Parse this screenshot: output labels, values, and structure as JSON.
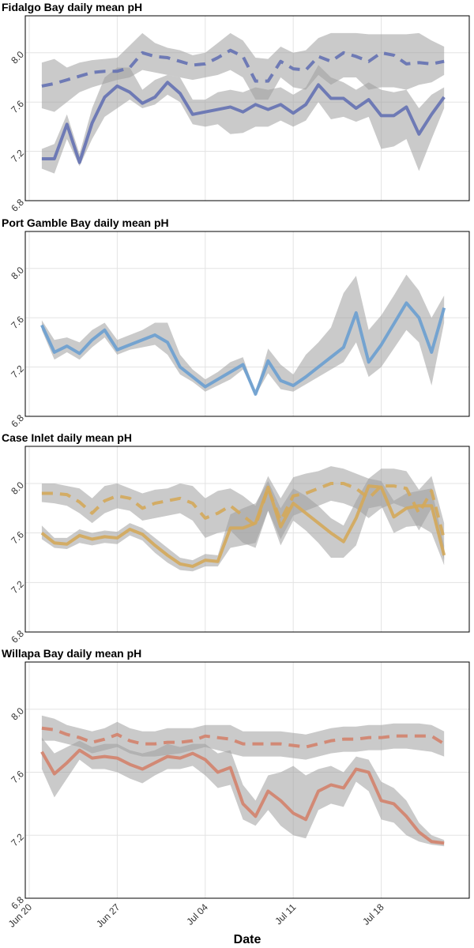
{
  "chart_data": [
    {
      "type": "line",
      "title": "Fidalgo Bay daily mean pH",
      "x": [
        "Jun 21",
        "Jun 22",
        "Jun 23",
        "Jun 24",
        "Jun 25",
        "Jun 26",
        "Jun 27",
        "Jun 28",
        "Jun 29",
        "Jun 30",
        "Jul 01",
        "Jul 02",
        "Jul 03",
        "Jul 04",
        "Jul 05",
        "Jul 06",
        "Jul 07",
        "Jul 08",
        "Jul 09",
        "Jul 10",
        "Jul 11",
        "Jul 12",
        "Jul 13",
        "Jul 14",
        "Jul 15",
        "Jul 16",
        "Jul 17",
        "Jul 18",
        "Jul 19",
        "Jul 20",
        "Jul 21",
        "Jul 22",
        "Jul 23"
      ],
      "xlim": [
        "Jun 20",
        "Jul 25"
      ],
      "xticks": [
        "Jun 20",
        "Jun 27",
        "Jul 04",
        "Jul 11",
        "Jul 18"
      ],
      "ylim": [
        6.8,
        8.3
      ],
      "yticks": [
        6.8,
        7.2,
        7.6,
        {
          "value": 8,
          "label": "8.0"
        }
      ],
      "grid": true,
      "series": [
        {
          "color": "#6471b3",
          "dashed": false,
          "values": [
            7.14,
            7.14,
            7.42,
            7.11,
            7.43,
            7.64,
            7.73,
            7.68,
            7.59,
            7.64,
            7.76,
            7.67,
            7.5,
            7.52,
            7.54,
            7.56,
            7.52,
            7.58,
            7.54,
            7.58,
            7.51,
            7.58,
            7.74,
            7.63,
            7.63,
            7.55,
            7.62,
            7.49,
            7.49,
            7.56,
            7.34,
            7.5,
            7.64
          ],
          "lower": [
            7.06,
            7.02,
            7.3,
            7.08,
            7.3,
            7.48,
            7.55,
            7.62,
            7.55,
            7.58,
            7.66,
            7.6,
            7.42,
            7.4,
            7.42,
            7.34,
            7.35,
            7.4,
            7.4,
            7.45,
            7.4,
            7.45,
            7.6,
            7.46,
            7.48,
            7.44,
            7.48,
            7.22,
            7.24,
            7.3,
            7.04,
            7.3,
            7.55
          ],
          "upper": [
            7.22,
            7.26,
            7.5,
            7.18,
            7.55,
            7.8,
            7.88,
            7.88,
            7.7,
            7.78,
            7.82,
            7.8,
            7.62,
            7.62,
            7.68,
            7.7,
            7.68,
            7.72,
            7.7,
            7.72,
            7.66,
            7.72,
            7.9,
            7.8,
            7.76,
            7.7,
            7.76,
            7.7,
            7.68,
            7.7,
            7.55,
            7.66,
            7.72
          ]
        },
        {
          "color": "#6471b3",
          "dashed": true,
          "values": [
            7.73,
            7.75,
            7.78,
            7.81,
            7.84,
            7.85,
            7.85,
            7.88,
            8.0,
            7.97,
            7.96,
            7.93,
            7.9,
            7.91,
            7.96,
            8.02,
            7.97,
            7.77,
            7.77,
            7.93,
            7.87,
            7.86,
            7.97,
            7.93,
            8.0,
            7.97,
            7.93,
            8.0,
            7.98,
            7.91,
            7.92,
            7.91,
            7.93
          ],
          "lower": [
            7.55,
            7.52,
            7.6,
            7.68,
            7.72,
            7.75,
            7.78,
            7.8,
            7.86,
            7.84,
            7.82,
            7.8,
            7.78,
            7.8,
            7.82,
            7.86,
            7.8,
            7.62,
            7.62,
            7.8,
            7.72,
            7.7,
            7.82,
            7.74,
            7.8,
            7.8,
            7.7,
            7.72,
            7.72,
            7.7,
            7.74,
            7.76,
            7.82
          ],
          "upper": [
            7.92,
            7.95,
            7.88,
            7.92,
            7.94,
            7.95,
            7.96,
            8.06,
            8.16,
            8.08,
            8.04,
            8.02,
            7.98,
            8.0,
            8.08,
            8.16,
            8.1,
            7.96,
            7.95,
            8.05,
            8.0,
            8.02,
            8.12,
            8.16,
            8.16,
            8.16,
            8.15,
            8.15,
            8.15,
            8.15,
            8.16,
            8.1,
            8.05
          ]
        }
      ]
    },
    {
      "type": "line",
      "title": "Port Gamble Bay daily mean pH",
      "x": [
        "Jun 21",
        "Jun 22",
        "Jun 23",
        "Jun 24",
        "Jun 25",
        "Jun 26",
        "Jun 27",
        "Jun 28",
        "Jun 29",
        "Jun 30",
        "Jul 01",
        "Jul 02",
        "Jul 03",
        "Jul 04",
        "Jul 05",
        "Jul 06",
        "Jul 07",
        "Jul 08",
        "Jul 09",
        "Jul 10",
        "Jul 11",
        "Jul 12",
        "Jul 13",
        "Jul 14",
        "Jul 15",
        "Jul 16",
        "Jul 17",
        "Jul 18",
        "Jul 19",
        "Jul 20",
        "Jul 21",
        "Jul 22",
        "Jul 23"
      ],
      "xlim": [
        "Jun 20",
        "Jul 25"
      ],
      "xticks": [
        "Jun 20",
        "Jun 27",
        "Jul 04",
        "Jul 11",
        "Jul 18"
      ],
      "ylim": [
        6.8,
        8.3
      ],
      "yticks": [
        6.8,
        7.2,
        7.6,
        {
          "value": 8,
          "label": "8.0"
        }
      ],
      "grid": true,
      "series": [
        {
          "color": "#6a9fd0",
          "dashed": false,
          "values": [
            7.54,
            7.32,
            7.37,
            7.31,
            7.42,
            7.5,
            7.34,
            7.38,
            7.42,
            7.46,
            7.4,
            7.2,
            7.12,
            7.04,
            7.1,
            7.16,
            7.22,
            6.98,
            7.25,
            7.09,
            7.05,
            7.12,
            7.2,
            7.28,
            7.36,
            7.64,
            7.24,
            7.38,
            7.55,
            7.72,
            7.6,
            7.32,
            7.68
          ],
          "lower": [
            7.5,
            7.26,
            7.32,
            7.26,
            7.36,
            7.44,
            7.3,
            7.34,
            7.36,
            7.38,
            7.3,
            7.14,
            7.08,
            7.0,
            7.05,
            7.1,
            7.18,
            6.97,
            7.15,
            7.02,
            7.0,
            7.06,
            7.12,
            7.18,
            7.24,
            7.4,
            7.12,
            7.2,
            7.35,
            7.5,
            7.4,
            7.05,
            7.56
          ],
          "upper": [
            7.58,
            7.42,
            7.44,
            7.4,
            7.5,
            7.56,
            7.42,
            7.46,
            7.5,
            7.56,
            7.56,
            7.3,
            7.18,
            7.1,
            7.16,
            7.24,
            7.28,
            6.99,
            7.35,
            7.22,
            7.14,
            7.3,
            7.4,
            7.52,
            7.8,
            7.94,
            7.5,
            7.62,
            7.78,
            7.95,
            7.82,
            7.6,
            7.78
          ]
        }
      ]
    },
    {
      "type": "line",
      "title": "Case Inlet daily mean pH",
      "x": [
        "Jun 21",
        "Jun 22",
        "Jun 23",
        "Jun 24",
        "Jun 25",
        "Jun 26",
        "Jun 27",
        "Jun 28",
        "Jun 29",
        "Jun 30",
        "Jul 01",
        "Jul 02",
        "Jul 03",
        "Jul 04",
        "Jul 05",
        "Jul 06",
        "Jul 07",
        "Jul 08",
        "Jul 09",
        "Jul 10",
        "Jul 11",
        "Jul 12",
        "Jul 13",
        "Jul 14",
        "Jul 15",
        "Jul 16",
        "Jul 17",
        "Jul 18",
        "Jul 19",
        "Jul 20",
        "Jul 21",
        "Jul 22",
        "Jul 23"
      ],
      "xlim": [
        "Jun 20",
        "Jul 25"
      ],
      "xticks": [
        "Jun 20",
        "Jun 27",
        "Jul 04",
        "Jul 11",
        "Jul 18"
      ],
      "ylim": [
        6.8,
        8.3
      ],
      "yticks": [
        6.8,
        7.2,
        7.6,
        {
          "value": 8,
          "label": "8.0"
        }
      ],
      "grid": true,
      "series": [
        {
          "color": "#d4a95a",
          "dashed": false,
          "values": [
            7.6,
            7.52,
            7.51,
            7.58,
            7.55,
            7.57,
            7.56,
            7.63,
            7.59,
            7.5,
            7.42,
            7.35,
            7.33,
            7.38,
            7.37,
            7.64,
            7.64,
            7.68,
            7.97,
            7.65,
            7.84,
            7.76,
            7.68,
            7.6,
            7.53,
            7.72,
            7.98,
            7.97,
            7.73,
            7.8,
            7.82,
            7.82,
            7.42
          ],
          "lower": [
            7.55,
            7.48,
            7.47,
            7.52,
            7.5,
            7.52,
            7.51,
            7.58,
            7.54,
            7.44,
            7.36,
            7.3,
            7.29,
            7.33,
            7.33,
            7.48,
            7.5,
            7.52,
            7.78,
            7.5,
            7.7,
            7.62,
            7.52,
            7.4,
            7.4,
            7.5,
            7.8,
            7.82,
            7.6,
            7.65,
            7.66,
            7.6,
            7.34
          ],
          "upper": [
            7.66,
            7.56,
            7.56,
            7.63,
            7.6,
            7.62,
            7.61,
            7.68,
            7.64,
            7.56,
            7.48,
            7.4,
            7.38,
            7.43,
            7.42,
            7.75,
            7.8,
            7.84,
            8.02,
            7.8,
            7.96,
            7.9,
            7.82,
            7.72,
            7.66,
            7.86,
            8.04,
            8.02,
            7.86,
            7.92,
            7.94,
            7.96,
            7.5
          ]
        },
        {
          "color": "#d4a95a",
          "dashed": true,
          "values": [
            7.92,
            7.92,
            7.91,
            7.85,
            7.76,
            7.86,
            7.9,
            7.88,
            7.8,
            7.84,
            7.86,
            7.88,
            7.84,
            7.72,
            7.76,
            7.82,
            7.74,
            7.66,
            7.96,
            7.7,
            7.9,
            7.92,
            7.96,
            8.0,
            8.0,
            7.96,
            7.88,
            7.98,
            7.98,
            7.96,
            7.76,
            7.94,
            7.55
          ],
          "lower": [
            7.85,
            7.84,
            7.82,
            7.76,
            7.68,
            7.76,
            7.8,
            7.78,
            7.7,
            7.72,
            7.74,
            7.76,
            7.7,
            7.56,
            7.6,
            7.62,
            7.52,
            7.48,
            7.78,
            7.55,
            7.74,
            7.78,
            7.82,
            7.86,
            7.84,
            7.8,
            7.72,
            7.8,
            7.84,
            7.8,
            7.62,
            7.8,
            7.38
          ],
          "upper": [
            8.0,
            8.0,
            7.98,
            7.96,
            7.88,
            7.98,
            8.0,
            7.96,
            7.92,
            7.95,
            7.96,
            8.0,
            7.98,
            7.88,
            7.94,
            7.96,
            7.9,
            7.82,
            8.06,
            7.88,
            8.05,
            8.08,
            8.1,
            8.14,
            8.12,
            8.08,
            8.04,
            8.12,
            8.12,
            8.1,
            7.95,
            8.06,
            7.68
          ]
        }
      ]
    },
    {
      "type": "line",
      "title": "Willapa Bay daily mean pH",
      "xlabel": "Date",
      "x": [
        "Jun 21",
        "Jun 22",
        "Jun 23",
        "Jun 24",
        "Jun 25",
        "Jun 26",
        "Jun 27",
        "Jun 28",
        "Jun 29",
        "Jun 30",
        "Jul 01",
        "Jul 02",
        "Jul 03",
        "Jul 04",
        "Jul 05",
        "Jul 06",
        "Jul 07",
        "Jul 08",
        "Jul 09",
        "Jul 10",
        "Jul 11",
        "Jul 12",
        "Jul 13",
        "Jul 14",
        "Jul 15",
        "Jul 16",
        "Jul 17",
        "Jul 18",
        "Jul 19",
        "Jul 20",
        "Jul 21",
        "Jul 22",
        "Jul 23"
      ],
      "xlim": [
        "Jun 20",
        "Jul 25"
      ],
      "xticks": [
        "Jun 20",
        "Jun 27",
        "Jul 04",
        "Jul 11",
        "Jul 18"
      ],
      "ylim": [
        6.8,
        8.3
      ],
      "yticks": [
        6.8,
        7.2,
        7.6,
        {
          "value": 8,
          "label": "8.0"
        }
      ],
      "grid": true,
      "series": [
        {
          "color": "#d3826b",
          "dashed": false,
          "values": [
            7.73,
            7.59,
            7.66,
            7.74,
            7.69,
            7.7,
            7.69,
            7.65,
            7.62,
            7.66,
            7.7,
            7.69,
            7.72,
            7.68,
            7.6,
            7.63,
            7.4,
            7.32,
            7.48,
            7.42,
            7.34,
            7.3,
            7.48,
            7.52,
            7.5,
            7.62,
            7.6,
            7.42,
            7.4,
            7.32,
            7.22,
            7.16,
            7.15
          ],
          "lower": [
            7.62,
            7.44,
            7.56,
            7.68,
            7.62,
            7.62,
            7.6,
            7.56,
            7.53,
            7.58,
            7.62,
            7.62,
            7.64,
            7.58,
            7.5,
            7.52,
            7.3,
            7.26,
            7.36,
            7.26,
            7.2,
            7.18,
            7.36,
            7.4,
            7.38,
            7.54,
            7.48,
            7.3,
            7.28,
            7.2,
            7.16,
            7.14,
            7.13
          ],
          "upper": [
            7.82,
            7.72,
            7.76,
            7.8,
            7.76,
            7.78,
            7.78,
            7.74,
            7.72,
            7.74,
            7.78,
            7.76,
            7.78,
            7.78,
            7.72,
            7.74,
            7.52,
            7.42,
            7.58,
            7.6,
            7.64,
            7.58,
            7.62,
            7.64,
            7.6,
            7.7,
            7.68,
            7.54,
            7.5,
            7.42,
            7.28,
            7.2,
            7.17
          ]
        },
        {
          "color": "#d3826b",
          "dashed": true,
          "values": [
            7.88,
            7.87,
            7.84,
            7.82,
            7.79,
            7.81,
            7.84,
            7.8,
            7.78,
            7.78,
            7.79,
            7.79,
            7.8,
            7.83,
            7.82,
            7.81,
            7.78,
            7.78,
            7.78,
            7.78,
            7.77,
            7.76,
            7.78,
            7.8,
            7.81,
            7.81,
            7.82,
            7.82,
            7.83,
            7.83,
            7.83,
            7.83,
            7.78
          ],
          "lower": [
            7.8,
            7.8,
            7.78,
            7.76,
            7.72,
            7.74,
            7.76,
            7.72,
            7.7,
            7.7,
            7.71,
            7.72,
            7.74,
            7.76,
            7.74,
            7.72,
            7.7,
            7.7,
            7.7,
            7.7,
            7.69,
            7.68,
            7.7,
            7.72,
            7.73,
            7.73,
            7.74,
            7.74,
            7.75,
            7.75,
            7.74,
            7.73,
            7.7
          ],
          "upper": [
            7.96,
            7.94,
            7.9,
            7.88,
            7.86,
            7.88,
            7.92,
            7.88,
            7.86,
            7.86,
            7.88,
            7.88,
            7.88,
            7.9,
            7.9,
            7.9,
            7.86,
            7.86,
            7.86,
            7.86,
            7.85,
            7.84,
            7.86,
            7.88,
            7.89,
            7.89,
            7.9,
            7.9,
            7.91,
            7.91,
            7.91,
            7.9,
            7.86
          ]
        }
      ]
    }
  ]
}
